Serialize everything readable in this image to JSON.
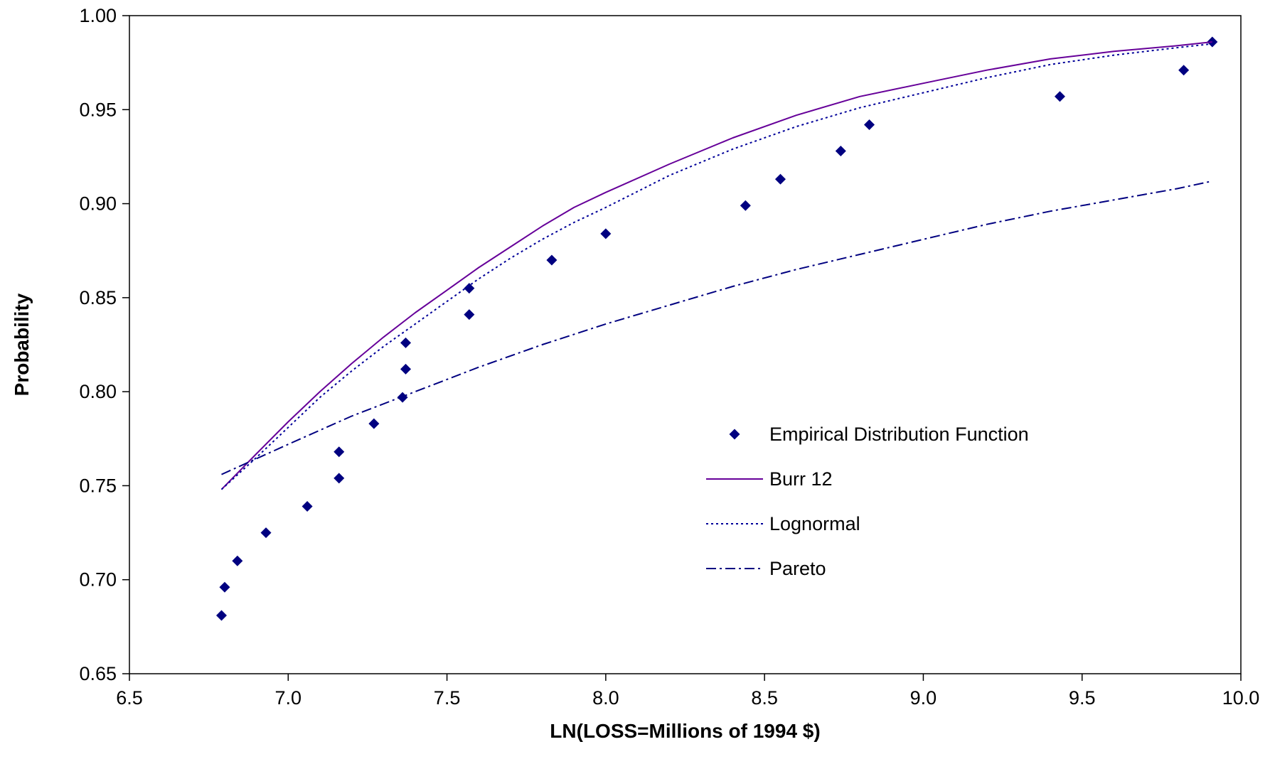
{
  "chart_data": {
    "type": "line",
    "title": "",
    "xlabel": "LN(LOSS=Millions of 1994 $)",
    "ylabel": "Probability",
    "xlim": [
      6.5,
      10.0
    ],
    "ylim": [
      0.65,
      1.0
    ],
    "x_ticks": [
      "6.5",
      "7.0",
      "7.5",
      "8.0",
      "8.5",
      "9.0",
      "9.5",
      "10.0"
    ],
    "y_ticks": [
      "0.65",
      "0.70",
      "0.75",
      "0.80",
      "0.85",
      "0.90",
      "0.95",
      "1.00"
    ],
    "grid": false,
    "legend_position": "center-right",
    "series": [
      {
        "name": "Empirical Distribution Function",
        "kind": "scatter",
        "marker": "diamond",
        "color": "#000080",
        "x": [
          6.79,
          6.8,
          6.84,
          6.93,
          7.06,
          7.16,
          7.16,
          7.27,
          7.36,
          7.37,
          7.37,
          7.57,
          7.57,
          7.83,
          8.0,
          8.44,
          8.55,
          8.74,
          8.83,
          9.43,
          9.82,
          9.91
        ],
        "y": [
          0.681,
          0.696,
          0.71,
          0.725,
          0.739,
          0.754,
          0.768,
          0.783,
          0.797,
          0.812,
          0.826,
          0.841,
          0.855,
          0.87,
          0.884,
          0.899,
          0.913,
          0.928,
          0.942,
          0.957,
          0.971,
          0.986
        ]
      },
      {
        "name": "Burr 12",
        "kind": "line",
        "dash": "solid",
        "color": "#660099",
        "x": [
          6.79,
          6.9,
          7.0,
          7.1,
          7.2,
          7.3,
          7.4,
          7.5,
          7.6,
          7.7,
          7.8,
          7.9,
          8.0,
          8.2,
          8.4,
          8.6,
          8.8,
          9.0,
          9.2,
          9.4,
          9.6,
          9.8,
          9.91
        ],
        "y": [
          0.748,
          0.767,
          0.784,
          0.8,
          0.815,
          0.829,
          0.842,
          0.854,
          0.866,
          0.877,
          0.888,
          0.898,
          0.906,
          0.921,
          0.935,
          0.947,
          0.957,
          0.964,
          0.971,
          0.977,
          0.981,
          0.984,
          0.986
        ]
      },
      {
        "name": "Lognormal",
        "kind": "line",
        "dash": "dotted",
        "color": "#000099",
        "x": [
          6.79,
          6.9,
          7.0,
          7.1,
          7.2,
          7.3,
          7.4,
          7.5,
          7.6,
          7.7,
          7.8,
          7.9,
          8.0,
          8.2,
          8.4,
          8.6,
          8.8,
          9.0,
          9.2,
          9.4,
          9.6,
          9.8,
          9.91
        ],
        "y": [
          0.748,
          0.765,
          0.781,
          0.797,
          0.811,
          0.824,
          0.836,
          0.848,
          0.86,
          0.871,
          0.881,
          0.89,
          0.898,
          0.915,
          0.929,
          0.941,
          0.951,
          0.959,
          0.967,
          0.974,
          0.979,
          0.983,
          0.985
        ]
      },
      {
        "name": "Pareto",
        "kind": "line",
        "dash": "dash-dot",
        "color": "#000080",
        "x": [
          6.79,
          7.0,
          7.2,
          7.4,
          7.6,
          7.8,
          8.0,
          8.2,
          8.4,
          8.6,
          8.8,
          9.0,
          9.2,
          9.4,
          9.6,
          9.8,
          9.91
        ],
        "y": [
          0.756,
          0.772,
          0.787,
          0.8,
          0.813,
          0.825,
          0.836,
          0.846,
          0.856,
          0.865,
          0.873,
          0.881,
          0.889,
          0.896,
          0.902,
          0.908,
          0.912
        ]
      }
    ]
  }
}
